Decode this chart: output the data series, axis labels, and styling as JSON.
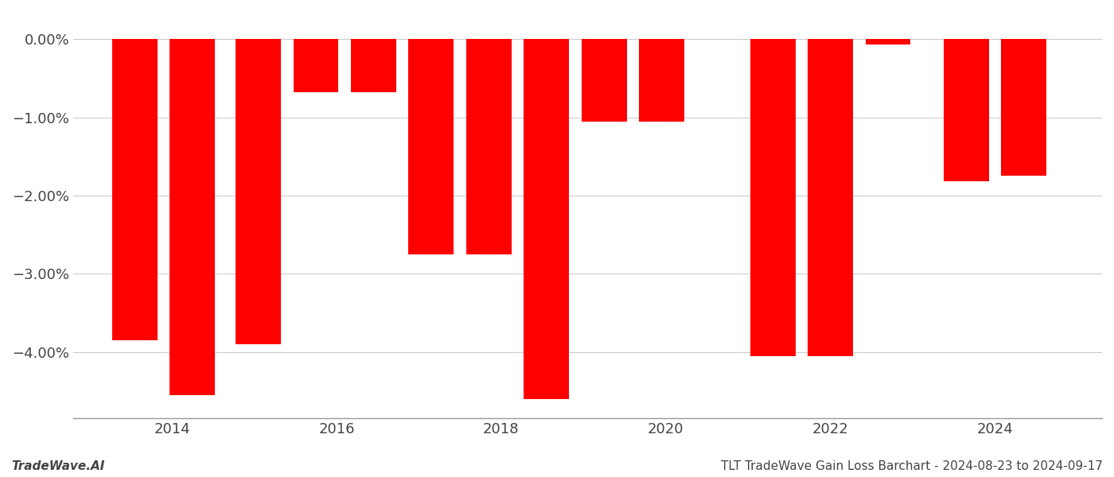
{
  "years": [
    2013.55,
    2014.25,
    2015.05,
    2015.75,
    2016.45,
    2017.15,
    2017.85,
    2018.55,
    2019.25,
    2019.95,
    2021.3,
    2022.0,
    2022.7,
    2023.65,
    2024.35
  ],
  "values": [
    -3.85,
    -4.55,
    -3.9,
    -0.68,
    -0.68,
    -2.75,
    -2.75,
    -4.6,
    -1.05,
    -1.05,
    -4.05,
    -4.05,
    -0.07,
    -1.82,
    -1.75
  ],
  "bar_color": "#ff0000",
  "background_color": "#ffffff",
  "grid_color": "#cccccc",
  "axis_color": "#444444",
  "ylim": [
    -4.85,
    0.35
  ],
  "yticks": [
    0.0,
    -1.0,
    -2.0,
    -3.0,
    -4.0
  ],
  "xlim": [
    2012.8,
    2025.3
  ],
  "xticks": [
    2014,
    2016,
    2018,
    2020,
    2022,
    2024
  ],
  "bar_width": 0.55,
  "footer_left": "TradeWave.AI",
  "footer_right": "TLT TradeWave Gain Loss Barchart - 2024-08-23 to 2024-09-17",
  "footer_fontsize": 11,
  "tick_fontsize": 13,
  "spine_color": "#999999"
}
